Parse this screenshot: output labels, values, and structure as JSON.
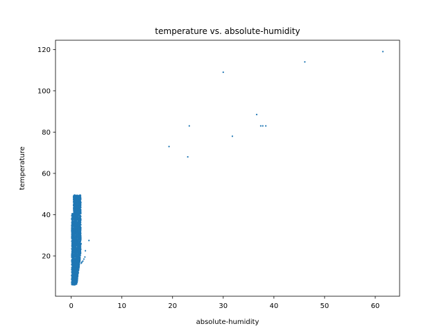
{
  "chart_data": {
    "type": "scatter",
    "title": "temperature vs. absolute-humidity",
    "xlabel": "absolute-humidity",
    "ylabel": "temperature",
    "xlim": [
      -3.1,
      64.8
    ],
    "ylim": [
      0.5,
      124.5
    ],
    "xticks": [
      0,
      10,
      20,
      30,
      40,
      50,
      60
    ],
    "yticks": [
      20,
      40,
      60,
      80,
      100,
      120
    ],
    "grid": false,
    "legend": "none",
    "marker_color": "#1f77b4",
    "dense_cluster": {
      "description_hidden": true,
      "x_min": 0.1,
      "x_max": 1.9,
      "y_min": 6.0,
      "y_max": 49.5,
      "n_points": 2600
    },
    "series": [
      {
        "points": [
          {
            "x": 19.3,
            "y": 73
          },
          {
            "x": 23.0,
            "y": 68
          },
          {
            "x": 23.3,
            "y": 83
          },
          {
            "x": 30.0,
            "y": 109
          },
          {
            "x": 31.8,
            "y": 78
          },
          {
            "x": 36.6,
            "y": 88.5
          },
          {
            "x": 37.4,
            "y": 83
          },
          {
            "x": 37.8,
            "y": 83
          },
          {
            "x": 38.4,
            "y": 83
          },
          {
            "x": 46.1,
            "y": 114
          },
          {
            "x": 61.5,
            "y": 119
          },
          {
            "x": 3.5,
            "y": 27.5
          },
          {
            "x": 2.8,
            "y": 22.5
          },
          {
            "x": 2.7,
            "y": 19.5
          },
          {
            "x": 2.5,
            "y": 18.5
          },
          {
            "x": 2.3,
            "y": 17.5
          },
          {
            "x": 2.1,
            "y": 17.0
          },
          {
            "x": 2.0,
            "y": 16.5
          },
          {
            "x": 1.95,
            "y": 26.0
          },
          {
            "x": 1.9,
            "y": 46.0
          },
          {
            "x": 1.8,
            "y": 45.0
          },
          {
            "x": 0.6,
            "y": 48.0
          },
          {
            "x": 0.7,
            "y": 49.0
          },
          {
            "x": 0.2,
            "y": 40.5
          }
        ]
      }
    ]
  }
}
